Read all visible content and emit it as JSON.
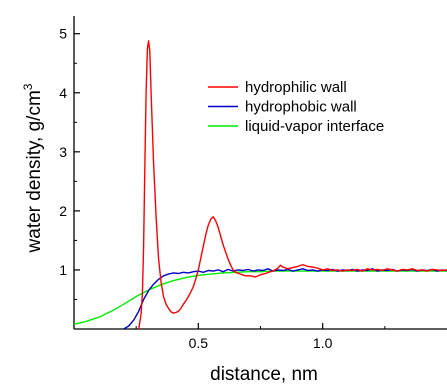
{
  "chart_data": {
    "type": "line",
    "xlabel": "distance, nm",
    "ylabel_text": "water density, g/cm",
    "ylabel_sup": "3",
    "xlim": [
      0.0,
      1.5
    ],
    "ylim": [
      0.0,
      5.3
    ],
    "x_ticks": [
      0.5,
      1.0
    ],
    "x_tick_labels": [
      "0.5",
      "1.0"
    ],
    "y_ticks": [
      1,
      2,
      3,
      4,
      5
    ],
    "y_tick_labels": [
      "1",
      "2",
      "3",
      "4",
      "5"
    ],
    "grid": false,
    "legend_position": "top-right",
    "series": [
      {
        "name": "hydrophilic wall",
        "color": "#ff0000",
        "points": [
          [
            0.26,
            0.0
          ],
          [
            0.27,
            0.25
          ],
          [
            0.275,
            0.6
          ],
          [
            0.28,
            1.4
          ],
          [
            0.285,
            2.8
          ],
          [
            0.29,
            4.0
          ],
          [
            0.295,
            4.75
          ],
          [
            0.3,
            4.88
          ],
          [
            0.305,
            4.7
          ],
          [
            0.31,
            4.0
          ],
          [
            0.32,
            2.8
          ],
          [
            0.33,
            1.9
          ],
          [
            0.34,
            1.2
          ],
          [
            0.35,
            0.8
          ],
          [
            0.36,
            0.55
          ],
          [
            0.37,
            0.42
          ],
          [
            0.38,
            0.35
          ],
          [
            0.39,
            0.29
          ],
          [
            0.4,
            0.27
          ],
          [
            0.41,
            0.28
          ],
          [
            0.42,
            0.3
          ],
          [
            0.43,
            0.35
          ],
          [
            0.44,
            0.42
          ],
          [
            0.45,
            0.48
          ],
          [
            0.46,
            0.55
          ],
          [
            0.47,
            0.63
          ],
          [
            0.48,
            0.72
          ],
          [
            0.49,
            0.85
          ],
          [
            0.5,
            1.0
          ],
          [
            0.51,
            1.2
          ],
          [
            0.52,
            1.4
          ],
          [
            0.53,
            1.6
          ],
          [
            0.54,
            1.76
          ],
          [
            0.55,
            1.86
          ],
          [
            0.56,
            1.9
          ],
          [
            0.57,
            1.83
          ],
          [
            0.58,
            1.72
          ],
          [
            0.59,
            1.57
          ],
          [
            0.6,
            1.42
          ],
          [
            0.61,
            1.3
          ],
          [
            0.62,
            1.18
          ],
          [
            0.63,
            1.08
          ],
          [
            0.64,
            1.0
          ],
          [
            0.65,
            0.96
          ],
          [
            0.67,
            0.93
          ],
          [
            0.69,
            0.9
          ],
          [
            0.71,
            0.9
          ],
          [
            0.73,
            0.88
          ],
          [
            0.75,
            0.92
          ],
          [
            0.77,
            0.94
          ],
          [
            0.79,
            0.97
          ],
          [
            0.8,
            0.98
          ],
          [
            0.82,
            1.03
          ],
          [
            0.83,
            1.08
          ],
          [
            0.84,
            1.05
          ],
          [
            0.86,
            1.02
          ],
          [
            0.88,
            1.04
          ],
          [
            0.9,
            1.06
          ],
          [
            0.92,
            1.09
          ],
          [
            0.94,
            1.06
          ],
          [
            0.96,
            1.05
          ],
          [
            0.98,
            1.03
          ],
          [
            1.0,
            1.0
          ],
          [
            1.02,
            1.02
          ],
          [
            1.04,
            0.99
          ],
          [
            1.06,
            1.0
          ],
          [
            1.08,
            0.98
          ],
          [
            1.1,
            1.0
          ],
          [
            1.12,
            0.99
          ],
          [
            1.14,
            1.01
          ],
          [
            1.16,
            0.98
          ],
          [
            1.18,
            1.02
          ],
          [
            1.2,
            1.0
          ],
          [
            1.22,
            1.01
          ],
          [
            1.24,
            0.99
          ],
          [
            1.26,
            1.02
          ],
          [
            1.28,
            1.0
          ],
          [
            1.3,
            0.98
          ],
          [
            1.32,
            1.01
          ],
          [
            1.34,
            1.0
          ],
          [
            1.36,
            1.02
          ],
          [
            1.38,
            0.99
          ],
          [
            1.4,
            1.0
          ],
          [
            1.42,
            0.98
          ],
          [
            1.44,
            1.01
          ],
          [
            1.46,
            1.0
          ],
          [
            1.48,
            0.99
          ],
          [
            1.5,
            1.0
          ]
        ]
      },
      {
        "name": "hydrophobic wall",
        "color": "#0000cc",
        "points": [
          [
            0.2,
            0.0
          ],
          [
            0.22,
            0.05
          ],
          [
            0.24,
            0.15
          ],
          [
            0.26,
            0.3
          ],
          [
            0.28,
            0.5
          ],
          [
            0.3,
            0.65
          ],
          [
            0.32,
            0.76
          ],
          [
            0.34,
            0.84
          ],
          [
            0.36,
            0.9
          ],
          [
            0.38,
            0.93
          ],
          [
            0.4,
            0.95
          ],
          [
            0.42,
            0.94
          ],
          [
            0.44,
            0.96
          ],
          [
            0.46,
            0.95
          ],
          [
            0.48,
            0.97
          ],
          [
            0.5,
            0.98
          ],
          [
            0.52,
            0.96
          ],
          [
            0.54,
            0.99
          ],
          [
            0.56,
            0.98
          ],
          [
            0.58,
            1.0
          ],
          [
            0.6,
            0.97
          ],
          [
            0.62,
            1.01
          ],
          [
            0.64,
            0.98
          ],
          [
            0.66,
            1.0
          ],
          [
            0.68,
            0.99
          ],
          [
            0.7,
            1.01
          ],
          [
            0.72,
            0.98
          ],
          [
            0.74,
            1.0
          ],
          [
            0.76,
            0.99
          ],
          [
            0.78,
            1.02
          ],
          [
            0.8,
            0.98
          ],
          [
            0.82,
            1.0
          ],
          [
            0.84,
            0.99
          ],
          [
            0.86,
            1.01
          ],
          [
            0.88,
            0.98
          ],
          [
            0.9,
            1.0
          ],
          [
            0.92,
            1.02
          ],
          [
            0.94,
            0.99
          ],
          [
            0.96,
            1.0
          ],
          [
            0.98,
            0.98
          ],
          [
            1.0,
            1.0
          ],
          [
            1.02,
            0.99
          ],
          [
            1.04,
            1.01
          ],
          [
            1.06,
            0.98
          ],
          [
            1.08,
            1.0
          ],
          [
            1.1,
            0.99
          ],
          [
            1.12,
            1.01
          ],
          [
            1.14,
            0.98
          ],
          [
            1.16,
            1.0
          ],
          [
            1.18,
            0.99
          ],
          [
            1.2,
            1.02
          ],
          [
            1.22,
            0.98
          ],
          [
            1.24,
            1.0
          ],
          [
            1.26,
            0.99
          ],
          [
            1.28,
            1.01
          ],
          [
            1.3,
            0.98
          ],
          [
            1.32,
            1.0
          ],
          [
            1.34,
            0.99
          ],
          [
            1.36,
            1.01
          ],
          [
            1.38,
            0.98
          ],
          [
            1.4,
            1.0
          ],
          [
            1.42,
            0.99
          ],
          [
            1.44,
            1.01
          ],
          [
            1.46,
            0.98
          ],
          [
            1.48,
            1.0
          ],
          [
            1.5,
            0.99
          ]
        ]
      },
      {
        "name": "liquid-vapor interface",
        "color": "#00ee00",
        "points": [
          [
            0.0,
            0.08
          ],
          [
            0.05,
            0.13
          ],
          [
            0.1,
            0.2
          ],
          [
            0.15,
            0.3
          ],
          [
            0.2,
            0.42
          ],
          [
            0.25,
            0.55
          ],
          [
            0.3,
            0.66
          ],
          [
            0.35,
            0.75
          ],
          [
            0.4,
            0.82
          ],
          [
            0.45,
            0.87
          ],
          [
            0.5,
            0.91
          ],
          [
            0.55,
            0.93
          ],
          [
            0.6,
            0.95
          ],
          [
            0.65,
            0.96
          ],
          [
            0.7,
            0.97
          ],
          [
            0.75,
            0.97
          ],
          [
            0.8,
            0.98
          ],
          [
            0.85,
            0.98
          ],
          [
            0.9,
            0.98
          ],
          [
            0.95,
            0.98
          ],
          [
            1.0,
            0.98
          ],
          [
            1.05,
            0.98
          ],
          [
            1.1,
            0.98
          ],
          [
            1.15,
            0.98
          ],
          [
            1.2,
            0.98
          ],
          [
            1.25,
            0.98
          ],
          [
            1.3,
            0.98
          ],
          [
            1.35,
            0.98
          ],
          [
            1.4,
            0.98
          ],
          [
            1.45,
            0.98
          ],
          [
            1.5,
            0.98
          ]
        ]
      }
    ]
  }
}
